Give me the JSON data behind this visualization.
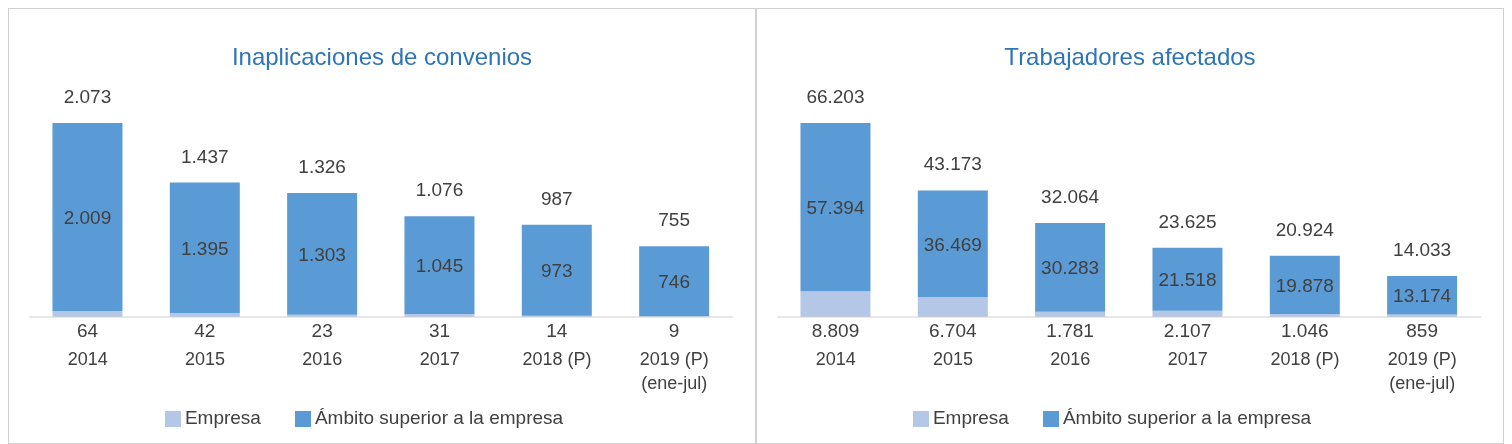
{
  "chart_data": [
    {
      "type": "bar",
      "title": "Inaplicaciones de convenios",
      "stacked": true,
      "legend": "bottom",
      "grid": false,
      "categories": [
        "2014",
        "2015",
        "2016",
        "2017",
        "2018 (P)",
        "2019 (P) (ene-jul)"
      ],
      "series": [
        {
          "name": "Empresa",
          "color": "#b4c7e7",
          "values": [
            64,
            42,
            23,
            31,
            14,
            9
          ],
          "value_labels": [
            "64",
            "42",
            "23",
            "31",
            "14",
            "9"
          ]
        },
        {
          "name": "Ámbito superior a la empresa",
          "color": "#5b9bd5",
          "values": [
            2009,
            1395,
            1303,
            1045,
            973,
            746
          ],
          "value_labels": [
            "2.009",
            "1.395",
            "1.303",
            "1.045",
            "973",
            "746"
          ]
        }
      ],
      "totals": [
        "2.073",
        "1.437",
        "1.326",
        "1.076",
        "987",
        "755"
      ]
    },
    {
      "type": "bar",
      "title": "Trabajadores afectados",
      "stacked": true,
      "legend": "bottom",
      "grid": false,
      "categories": [
        "2014",
        "2015",
        "2016",
        "2017",
        "2018 (P)",
        "2019 (P) (ene-jul)"
      ],
      "series": [
        {
          "name": "Empresa",
          "color": "#b4c7e7",
          "values": [
            8809,
            6704,
            1781,
            2107,
            1046,
            859
          ],
          "value_labels": [
            "8.809",
            "6.704",
            "1.781",
            "2.107",
            "1.046",
            "859"
          ]
        },
        {
          "name": "Ámbito superior a la empresa",
          "color": "#5b9bd5",
          "values": [
            57394,
            36469,
            30283,
            21518,
            19878,
            13174
          ],
          "value_labels": [
            "57.394",
            "36.469",
            "30.283",
            "21.518",
            "19.878",
            "13.174"
          ]
        }
      ],
      "totals": [
        "66.203",
        "43.173",
        "32.064",
        "23.625",
        "20.924",
        "14.033"
      ]
    }
  ]
}
